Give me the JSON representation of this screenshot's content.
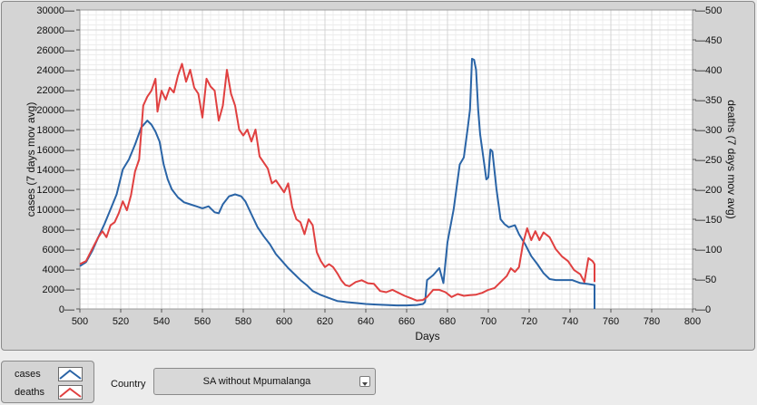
{
  "chart_data": {
    "type": "line",
    "xlabel": "Days",
    "ylabel_left": "cases  (7 days mov avg)",
    "ylabel_right": "deaths  (7 days mov avg)",
    "xlim": [
      500,
      800
    ],
    "ylim_left": [
      0,
      30000
    ],
    "ylim_right": [
      0,
      500
    ],
    "x_ticks": [
      500,
      520,
      540,
      560,
      580,
      600,
      620,
      640,
      660,
      680,
      700,
      720,
      740,
      760,
      780,
      800
    ],
    "y_ticks_left": [
      0,
      2000,
      4000,
      6000,
      8000,
      10000,
      12000,
      14000,
      16000,
      18000,
      20000,
      22000,
      24000,
      26000,
      28000,
      30000
    ],
    "y_ticks_right": [
      0,
      50,
      100,
      150,
      200,
      250,
      300,
      350,
      400,
      450,
      500
    ],
    "grid": true,
    "series": [
      {
        "name": "cases",
        "color": "#2a64a6",
        "axis": "left",
        "points": [
          [
            500,
            4300
          ],
          [
            503,
            4700
          ],
          [
            506,
            5800
          ],
          [
            509,
            7200
          ],
          [
            512,
            8500
          ],
          [
            515,
            10000
          ],
          [
            518,
            11500
          ],
          [
            521,
            14000
          ],
          [
            524,
            15000
          ],
          [
            527,
            16500
          ],
          [
            530,
            18200
          ],
          [
            533,
            18900
          ],
          [
            535,
            18500
          ],
          [
            537,
            17800
          ],
          [
            539,
            16800
          ],
          [
            541,
            14500
          ],
          [
            543,
            13000
          ],
          [
            545,
            12000
          ],
          [
            548,
            11200
          ],
          [
            551,
            10700
          ],
          [
            554,
            10500
          ],
          [
            557,
            10300
          ],
          [
            560,
            10100
          ],
          [
            563,
            10300
          ],
          [
            566,
            9700
          ],
          [
            568,
            9600
          ],
          [
            570,
            10500
          ],
          [
            573,
            11300
          ],
          [
            576,
            11500
          ],
          [
            579,
            11300
          ],
          [
            581,
            10800
          ],
          [
            584,
            9500
          ],
          [
            587,
            8200
          ],
          [
            590,
            7300
          ],
          [
            593,
            6500
          ],
          [
            596,
            5500
          ],
          [
            599,
            4800
          ],
          [
            602,
            4100
          ],
          [
            605,
            3500
          ],
          [
            608,
            2900
          ],
          [
            611,
            2400
          ],
          [
            614,
            1800
          ],
          [
            618,
            1400
          ],
          [
            622,
            1100
          ],
          [
            626,
            800
          ],
          [
            630,
            700
          ],
          [
            635,
            600
          ],
          [
            640,
            500
          ],
          [
            645,
            450
          ],
          [
            650,
            400
          ],
          [
            655,
            350
          ],
          [
            660,
            350
          ],
          [
            665,
            400
          ],
          [
            668,
            500
          ],
          [
            669,
            700
          ],
          [
            670,
            2900
          ],
          [
            673,
            3400
          ],
          [
            676,
            4100
          ],
          [
            678,
            2600
          ],
          [
            680,
            6700
          ],
          [
            683,
            10000
          ],
          [
            686,
            14500
          ],
          [
            688,
            15200
          ],
          [
            690,
            18300
          ],
          [
            691,
            20000
          ],
          [
            692,
            25100
          ],
          [
            693,
            25000
          ],
          [
            694,
            24000
          ],
          [
            695,
            20000
          ],
          [
            696,
            17500
          ],
          [
            697,
            16000
          ],
          [
            699,
            13000
          ],
          [
            700,
            13200
          ],
          [
            701,
            16000
          ],
          [
            702,
            15800
          ],
          [
            704,
            12000
          ],
          [
            706,
            9000
          ],
          [
            708,
            8500
          ],
          [
            710,
            8200
          ],
          [
            713,
            8400
          ],
          [
            715,
            7500
          ],
          [
            718,
            6500
          ],
          [
            721,
            5300
          ],
          [
            724,
            4500
          ],
          [
            727,
            3600
          ],
          [
            730,
            3000
          ],
          [
            733,
            2900
          ],
          [
            737,
            2900
          ],
          [
            741,
            2900
          ],
          [
            745,
            2600
          ],
          [
            749,
            2500
          ],
          [
            752,
            2400
          ],
          [
            752,
            0
          ]
        ]
      },
      {
        "name": "deaths",
        "color": "#e04040",
        "axis": "right",
        "points": [
          [
            500,
            75
          ],
          [
            503,
            80
          ],
          [
            506,
            100
          ],
          [
            509,
            120
          ],
          [
            511,
            130
          ],
          [
            513,
            120
          ],
          [
            515,
            140
          ],
          [
            517,
            145
          ],
          [
            519,
            160
          ],
          [
            521,
            180
          ],
          [
            523,
            165
          ],
          [
            525,
            190
          ],
          [
            527,
            230
          ],
          [
            529,
            250
          ],
          [
            531,
            340
          ],
          [
            533,
            355
          ],
          [
            535,
            365
          ],
          [
            537,
            385
          ],
          [
            538,
            330
          ],
          [
            540,
            365
          ],
          [
            542,
            350
          ],
          [
            544,
            370
          ],
          [
            546,
            362
          ],
          [
            548,
            390
          ],
          [
            550,
            410
          ],
          [
            552,
            380
          ],
          [
            554,
            400
          ],
          [
            556,
            370
          ],
          [
            558,
            360
          ],
          [
            560,
            320
          ],
          [
            562,
            385
          ],
          [
            564,
            372
          ],
          [
            566,
            365
          ],
          [
            568,
            315
          ],
          [
            570,
            340
          ],
          [
            572,
            400
          ],
          [
            574,
            360
          ],
          [
            576,
            340
          ],
          [
            578,
            300
          ],
          [
            580,
            290
          ],
          [
            582,
            300
          ],
          [
            584,
            280
          ],
          [
            586,
            300
          ],
          [
            588,
            255
          ],
          [
            590,
            245
          ],
          [
            592,
            235
          ],
          [
            594,
            210
          ],
          [
            596,
            215
          ],
          [
            598,
            205
          ],
          [
            600,
            195
          ],
          [
            602,
            210
          ],
          [
            604,
            170
          ],
          [
            606,
            150
          ],
          [
            608,
            145
          ],
          [
            610,
            125
          ],
          [
            612,
            150
          ],
          [
            614,
            140
          ],
          [
            616,
            95
          ],
          [
            618,
            80
          ],
          [
            620,
            70
          ],
          [
            622,
            75
          ],
          [
            624,
            70
          ],
          [
            626,
            60
          ],
          [
            628,
            48
          ],
          [
            630,
            40
          ],
          [
            632,
            38
          ],
          [
            635,
            45
          ],
          [
            638,
            48
          ],
          [
            641,
            43
          ],
          [
            644,
            42
          ],
          [
            647,
            30
          ],
          [
            650,
            28
          ],
          [
            653,
            32
          ],
          [
            656,
            27
          ],
          [
            659,
            22
          ],
          [
            662,
            18
          ],
          [
            665,
            14
          ],
          [
            668,
            15
          ],
          [
            670,
            20
          ],
          [
            673,
            32
          ],
          [
            676,
            32
          ],
          [
            679,
            28
          ],
          [
            682,
            20
          ],
          [
            685,
            25
          ],
          [
            688,
            22
          ],
          [
            691,
            23
          ],
          [
            694,
            24
          ],
          [
            697,
            27
          ],
          [
            700,
            32
          ],
          [
            703,
            35
          ],
          [
            706,
            45
          ],
          [
            709,
            55
          ],
          [
            711,
            68
          ],
          [
            713,
            62
          ],
          [
            715,
            70
          ],
          [
            717,
            110
          ],
          [
            719,
            135
          ],
          [
            721,
            115
          ],
          [
            723,
            130
          ],
          [
            725,
            115
          ],
          [
            727,
            128
          ],
          [
            730,
            120
          ],
          [
            733,
            100
          ],
          [
            736,
            88
          ],
          [
            739,
            80
          ],
          [
            742,
            65
          ],
          [
            745,
            58
          ],
          [
            747,
            45
          ],
          [
            749,
            85
          ],
          [
            751,
            80
          ],
          [
            752,
            75
          ],
          [
            752,
            45
          ]
        ]
      }
    ]
  },
  "legend": {
    "cases_label": "cases",
    "deaths_label": "deaths"
  },
  "country": {
    "label": "Country",
    "value": "SA without Mpumalanga"
  }
}
